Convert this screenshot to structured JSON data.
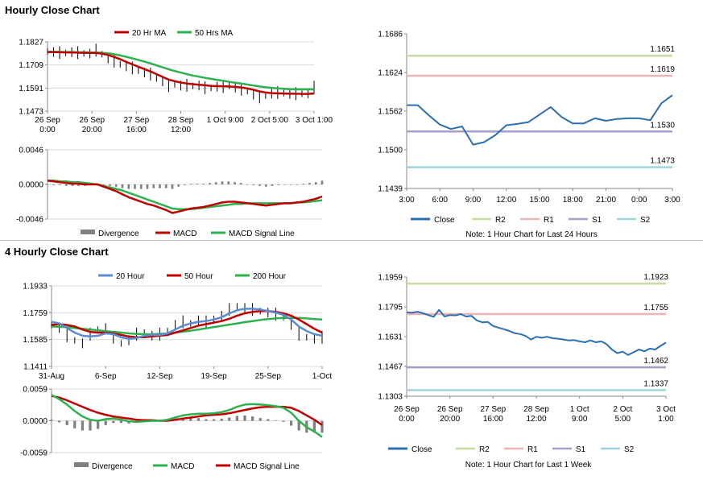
{
  "sections": {
    "hourly_title": "Hourly Close Chart",
    "four_hourly_title": "4 Hourly Close Chart"
  },
  "colors": {
    "close": "#2c6fb0",
    "ma_red": "#c00000",
    "ma_green": "#2db14e",
    "ma_blue": "#5b8bd0",
    "r2": "#c5dba0",
    "r1": "#eeb3b3",
    "s1": "#a89cc8",
    "s2": "#9fd2df",
    "divergence": "#808080"
  },
  "chart_data": [
    {
      "id": "hourly_price",
      "type": "line",
      "title": "Hourly Close Chart",
      "ylim": [
        1.1473,
        1.1827
      ],
      "ytick_labels": [
        "1.1827",
        "1.1709",
        "1.1591",
        "1.1473"
      ],
      "xtick_labels": [
        [
          "26 Sep",
          "0:00"
        ],
        [
          "26 Sep",
          "20:00"
        ],
        [
          "27 Sep",
          "16:00"
        ],
        [
          "28 Sep",
          "12:00"
        ],
        [
          "1 Oct 9:00"
        ],
        [
          "2 Oct 5:00"
        ],
        [
          "3 Oct 1:00"
        ]
      ],
      "legend": [
        "20 Hr MA",
        "50 Hrs MA"
      ],
      "series": [
        {
          "name": "Close",
          "values": [
            1.1778,
            1.1775,
            1.1772,
            1.1771,
            1.1774,
            1.1772,
            1.1768,
            1.1767,
            1.1785,
            1.1764,
            1.1742,
            1.1728,
            1.1712,
            1.1702,
            1.1694,
            1.168,
            1.167,
            1.1662,
            1.164,
            1.1625,
            1.1604,
            1.161,
            1.1603,
            1.1605,
            1.1602,
            1.1604,
            1.1593,
            1.1592,
            1.1598,
            1.1599,
            1.1602,
            1.1593,
            1.1585,
            1.1576,
            1.1557,
            1.1546,
            1.1553,
            1.1562,
            1.1568,
            1.1565,
            1.1561,
            1.1562,
            1.1562,
            1.1564,
            1.1595
          ]
        },
        {
          "name": "20 Hr MA",
          "values": [
            1.1775,
            1.1775,
            1.1774,
            1.1773,
            1.1773,
            1.1772,
            1.1771,
            1.177,
            1.177,
            1.1767,
            1.176,
            1.175,
            1.1738,
            1.1725,
            1.1712,
            1.17,
            1.1688,
            1.1676,
            1.1662,
            1.1648,
            1.1634,
            1.1626,
            1.1619,
            1.1614,
            1.1611,
            1.1608,
            1.1605,
            1.1602,
            1.1601,
            1.16,
            1.1599,
            1.1597,
            1.1594,
            1.1589,
            1.1582,
            1.1574,
            1.1568,
            1.1565,
            1.1564,
            1.1563,
            1.1562,
            1.1562,
            1.1561,
            1.1561,
            1.1563
          ]
        },
        {
          "name": "50 Hrs MA",
          "values": [
            1.1776,
            1.1776,
            1.1776,
            1.1775,
            1.1775,
            1.1774,
            1.1774,
            1.1773,
            1.1773,
            1.1771,
            1.1768,
            1.1764,
            1.1758,
            1.1751,
            1.1743,
            1.1735,
            1.1726,
            1.1717,
            1.1707,
            1.1697,
            1.1687,
            1.1678,
            1.167,
            1.1662,
            1.1655,
            1.1649,
            1.1643,
            1.1638,
            1.1633,
            1.1628,
            1.1623,
            1.1618,
            1.1614,
            1.1609,
            1.1604,
            1.1599,
            1.1595,
            1.1592,
            1.1589,
            1.1587,
            1.1585,
            1.1584,
            1.1584,
            1.1584,
            1.1584
          ]
        }
      ]
    },
    {
      "id": "hourly_macd",
      "type": "line",
      "ylim": [
        -0.0046,
        0.0046
      ],
      "ytick_labels": [
        "0.0046",
        "0.0000",
        "-0.0046"
      ],
      "legend": [
        "Divergence",
        "MACD",
        "MACD Signal Line"
      ],
      "series": [
        {
          "name": "MACD",
          "values": [
            0.0005,
            0.0004,
            0.0003,
            0.0002,
            0.0001,
            0.0001,
            0.0,
            0.0,
            0.0,
            -0.0003,
            -0.0006,
            -0.0009,
            -0.0013,
            -0.0017,
            -0.002,
            -0.0023,
            -0.0026,
            -0.0028,
            -0.0031,
            -0.0034,
            -0.0038,
            -0.0036,
            -0.0034,
            -0.0032,
            -0.0031,
            -0.003,
            -0.0028,
            -0.0026,
            -0.0024,
            -0.0023,
            -0.0023,
            -0.0024,
            -0.0025,
            -0.0026,
            -0.0027,
            -0.0028,
            -0.0027,
            -0.0026,
            -0.0025,
            -0.0025,
            -0.0024,
            -0.0023,
            -0.0021,
            -0.0019,
            -0.0016
          ]
        },
        {
          "name": "MACD Signal Line",
          "values": [
            0.0005,
            0.0005,
            0.0004,
            0.0004,
            0.0003,
            0.0003,
            0.0002,
            0.0001,
            0.0,
            -0.0002,
            -0.0004,
            -0.0006,
            -0.0008,
            -0.0011,
            -0.0014,
            -0.0017,
            -0.002,
            -0.0023,
            -0.0026,
            -0.0029,
            -0.0032,
            -0.0033,
            -0.0033,
            -0.0033,
            -0.0032,
            -0.0031,
            -0.003,
            -0.0029,
            -0.0028,
            -0.0027,
            -0.0026,
            -0.0026,
            -0.0025,
            -0.0025,
            -0.0025,
            -0.0025,
            -0.0025,
            -0.0025,
            -0.0025,
            -0.0025,
            -0.0024,
            -0.0024,
            -0.0023,
            -0.0022,
            -0.0021
          ]
        },
        {
          "name": "Divergence",
          "values": [
            0.0,
            -0.0001,
            -0.0001,
            -0.0002,
            -0.0002,
            -0.0002,
            -0.0002,
            -0.0001,
            0.0,
            -0.0001,
            -0.0002,
            -0.0003,
            -0.0005,
            -0.0006,
            -0.0006,
            -0.0006,
            -0.0006,
            -0.0005,
            -0.0005,
            -0.0005,
            -0.0006,
            -0.0003,
            -0.0001,
            0.0001,
            0.0001,
            0.0001,
            0.0002,
            0.0003,
            0.0004,
            0.0004,
            0.0003,
            0.0002,
            0.0,
            -0.0001,
            -0.0002,
            -0.0003,
            -0.0002,
            -0.0001,
            0.0,
            0.0,
            0.0,
            0.0001,
            0.0002,
            0.0003,
            0.0005
          ]
        }
      ]
    },
    {
      "id": "hourly_pivots",
      "type": "line",
      "note": "Note: 1 Hour Chart for Last 24 Hours",
      "ylim": [
        1.1439,
        1.1686
      ],
      "ytick_labels": [
        "1.1686",
        "1.1624",
        "1.1562",
        "1.1500",
        "1.1439"
      ],
      "xtick_labels": [
        "3:00",
        "6:00",
        "9:00",
        "12:00",
        "15:00",
        "18:00",
        "21:00",
        "0:00",
        "3:00"
      ],
      "legend": [
        "Close",
        "R2",
        "R1",
        "S1",
        "S2"
      ],
      "levels": {
        "R2": 1.1651,
        "R1": 1.1619,
        "S1": 1.153,
        "S2": 1.1473
      },
      "level_labels": {
        "R2": "1.1651",
        "R1": "1.1619",
        "S1": "1.1530",
        "S2": "1.1473"
      },
      "series": [
        {
          "name": "Close",
          "values": [
            1.1572,
            1.1572,
            1.1556,
            1.1541,
            1.1534,
            1.1538,
            1.1509,
            1.1513,
            1.1524,
            1.154,
            1.1542,
            1.1545,
            1.1557,
            1.1569,
            1.1553,
            1.1543,
            1.1543,
            1.1551,
            1.1547,
            1.155,
            1.1551,
            1.1551,
            1.1548,
            1.1575,
            1.1588
          ]
        }
      ]
    },
    {
      "id": "four_hourly_price",
      "type": "line",
      "title": "4 Hourly Close Chart",
      "ylim": [
        1.1411,
        1.1933
      ],
      "ytick_labels": [
        "1.1933",
        "1.1759",
        "1.1585",
        "1.1411"
      ],
      "xtick_labels": [
        "31-Aug",
        "6-Sep",
        "12-Sep",
        "19-Sep",
        "25-Sep",
        "1-Oct"
      ],
      "legend": [
        "20 Hour",
        "50 Hour",
        "200 Hour"
      ],
      "series": [
        {
          "name": "Close",
          "values": [
            1.168,
            1.166,
            1.161,
            1.158,
            1.156,
            1.162,
            1.165,
            1.166,
            1.16,
            1.156,
            1.158,
            1.162,
            1.163,
            1.161,
            1.162,
            1.164,
            1.168,
            1.17,
            1.169,
            1.171,
            1.17,
            1.172,
            1.174,
            1.178,
            1.18,
            1.179,
            1.178,
            1.177,
            1.176,
            1.175,
            1.173,
            1.168,
            1.162,
            1.16,
            1.159,
            1.16
          ]
        },
        {
          "name": "20 Hour",
          "values": [
            1.17,
            1.169,
            1.166,
            1.163,
            1.161,
            1.1605,
            1.161,
            1.1625,
            1.162,
            1.16,
            1.159,
            1.1595,
            1.161,
            1.1615,
            1.1615,
            1.1625,
            1.165,
            1.1675,
            1.169,
            1.17,
            1.1705,
            1.1715,
            1.173,
            1.1755,
            1.1775,
            1.1785,
            1.1785,
            1.178,
            1.177,
            1.176,
            1.1745,
            1.1715,
            1.167,
            1.164,
            1.162,
            1.161
          ]
        },
        {
          "name": "50 Hour",
          "values": [
            1.168,
            1.1685,
            1.168,
            1.167,
            1.165,
            1.1635,
            1.163,
            1.163,
            1.1625,
            1.1615,
            1.1605,
            1.16,
            1.16,
            1.1605,
            1.161,
            1.1615,
            1.163,
            1.1645,
            1.166,
            1.1675,
            1.1685,
            1.1695,
            1.1705,
            1.172,
            1.174,
            1.1755,
            1.1765,
            1.177,
            1.177,
            1.1765,
            1.1755,
            1.174,
            1.1715,
            1.1685,
            1.1655,
            1.163
          ]
        },
        {
          "name": "200 Hour",
          "values": [
            1.167,
            1.1668,
            1.1665,
            1.166,
            1.1655,
            1.165,
            1.1645,
            1.164,
            1.1635,
            1.163,
            1.1625,
            1.1622,
            1.162,
            1.162,
            1.1622,
            1.1625,
            1.163,
            1.1636,
            1.1642,
            1.165,
            1.1658,
            1.1666,
            1.1674,
            1.1682,
            1.169,
            1.1698,
            1.1705,
            1.1712,
            1.1718,
            1.1722,
            1.1725,
            1.1726,
            1.1725,
            1.1722,
            1.1718,
            1.1715
          ]
        }
      ]
    },
    {
      "id": "four_hourly_macd",
      "type": "line",
      "ylim": [
        -0.0059,
        0.0059
      ],
      "ytick_labels": [
        "0.0059",
        "0.0000",
        "-0.0059"
      ],
      "legend": [
        "Divergence",
        "MACD",
        "MACD Signal Line"
      ],
      "series": [
        {
          "name": "MACD",
          "values": [
            0.0048,
            0.004,
            0.003,
            0.0018,
            0.0008,
            0.0002,
            0.0,
            0.0003,
            0.0004,
            0.0002,
            -0.0001,
            -0.0002,
            -0.0001,
            0.0,
            0.0,
            0.0002,
            0.0006,
            0.001,
            0.0012,
            0.0013,
            0.0013,
            0.0014,
            0.0016,
            0.002,
            0.0026,
            0.003,
            0.0031,
            0.003,
            0.0029,
            0.0027,
            0.0024,
            0.0015,
            0.0,
            -0.0012,
            -0.002,
            -0.003
          ]
        },
        {
          "name": "MACD Signal Line",
          "values": [
            0.0046,
            0.0043,
            0.0038,
            0.0032,
            0.0026,
            0.002,
            0.0015,
            0.0011,
            0.0008,
            0.0006,
            0.0004,
            0.0002,
            0.0001,
            0.0001,
            0.0,
            0.0,
            0.0002,
            0.0004,
            0.0006,
            0.0008,
            0.001,
            0.0011,
            0.0012,
            0.0014,
            0.0017,
            0.002,
            0.0023,
            0.0025,
            0.0026,
            0.0026,
            0.0026,
            0.0024,
            0.0018,
            0.001,
            0.0002,
            -0.0008
          ]
        },
        {
          "name": "Divergence",
          "values": [
            0.0002,
            -0.0003,
            -0.0008,
            -0.0014,
            -0.0018,
            -0.0018,
            -0.0015,
            -0.0008,
            -0.0004,
            -0.0004,
            -0.0005,
            -0.0004,
            -0.0002,
            -0.0001,
            0.0,
            0.0002,
            0.0004,
            0.0006,
            0.0006,
            0.0005,
            0.0003,
            0.0003,
            0.0004,
            0.0006,
            0.0009,
            0.001,
            0.0008,
            0.0005,
            0.0003,
            0.0001,
            -0.0002,
            -0.0009,
            -0.0018,
            -0.0022,
            -0.0022,
            -0.0022
          ]
        }
      ]
    },
    {
      "id": "four_hourly_pivots",
      "type": "line",
      "note": "Note: 1 Hour Chart for Last 1 Week",
      "ylim": [
        1.1303,
        1.1959
      ],
      "ytick_labels": [
        "1.1959",
        "1.1795",
        "1.1631",
        "1.1467",
        "1.1303"
      ],
      "xtick_labels": [
        [
          "26 Sep",
          "0:00"
        ],
        [
          "26 Sep",
          "20:00"
        ],
        [
          "27 Sep",
          "16:00"
        ],
        [
          "28 Sep",
          "12:00"
        ],
        [
          "1 Oct",
          "9:00"
        ],
        [
          "2 Oct",
          "5:00"
        ],
        [
          "3 Oct",
          "1:00"
        ]
      ],
      "legend": [
        "Close",
        "R2",
        "R1",
        "S1",
        "S2"
      ],
      "levels": {
        "R2": 1.1923,
        "R1": 1.1755,
        "S1": 1.1462,
        "S2": 1.1337
      },
      "level_labels": {
        "R2": "1.1923",
        "R1": "1.1755",
        "S1": "1.1462",
        "S2": "1.1337"
      },
      "series": [
        {
          "name": "Close",
          "values": [
            1.1765,
            1.1762,
            1.1768,
            1.176,
            1.175,
            1.174,
            1.1778,
            1.1742,
            1.175,
            1.1748,
            1.1755,
            1.1742,
            1.1745,
            1.172,
            1.171,
            1.1712,
            1.169,
            1.168,
            1.1672,
            1.1662,
            1.165,
            1.1645,
            1.1635,
            1.1615,
            1.163,
            1.1625,
            1.163,
            1.1622,
            1.162,
            1.1615,
            1.161,
            1.1612,
            1.1605,
            1.16,
            1.161,
            1.16,
            1.1605,
            1.159,
            1.156,
            1.154,
            1.1548,
            1.153,
            1.1545,
            1.156,
            1.155,
            1.1565,
            1.156,
            1.158,
            1.1598
          ]
        }
      ]
    }
  ]
}
